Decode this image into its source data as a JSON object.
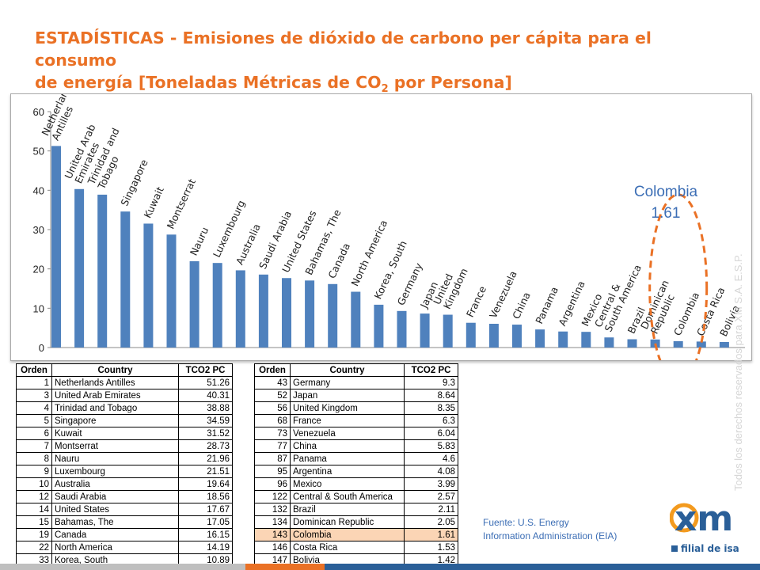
{
  "title": {
    "line1": "ESTADÍSTICAS - Emisiones de dióxido de carbono per cápita para el consumo",
    "line2_pre": "de energía [Toneladas Métricas  de CO",
    "line2_sub": "2",
    "line2_post": " por Persona]"
  },
  "callout": {
    "label": "Colombia",
    "value": "1.61"
  },
  "chart_data": {
    "type": "bar",
    "title": "",
    "xlabel": "",
    "ylabel": "",
    "ylim": [
      0,
      60
    ],
    "yticks": [
      0,
      10,
      20,
      30,
      40,
      50,
      60
    ],
    "grid": false,
    "legend": "none",
    "bar_color": "#4f81bd",
    "highlight_color": "#ea7125",
    "categories": [
      "Netherlands Antilles",
      "United Arab Emirates",
      "Trinidad and Tobago",
      "Singapore",
      "Kuwait",
      "Montserrat",
      "Nauru",
      "Luxembourg",
      "Australia",
      "Saudi Arabia",
      "United States",
      "Bahamas, The",
      "Canada",
      "North America",
      "Korea, South",
      "Germany",
      "Japan",
      "United Kingdom",
      "France",
      "Venezuela",
      "China",
      "Panama",
      "Argentina",
      "Mexico",
      "Central & South America",
      "Brazil",
      "Dominican Republic",
      "Colombia",
      "Costa Rica",
      "Bolivia"
    ],
    "label_lines": [
      [
        "Netherlands",
        "Antilles"
      ],
      [
        "United Arab",
        "Emirates"
      ],
      [
        "Trinidad and",
        "Tobago"
      ],
      [
        "Singapore"
      ],
      [
        "Kuwait"
      ],
      [
        "Montserrat"
      ],
      [
        "Nauru"
      ],
      [
        "Luxembourg"
      ],
      [
        "Australia"
      ],
      [
        "Saudi Arabia"
      ],
      [
        "United States"
      ],
      [
        "Bahamas, The"
      ],
      [
        "Canada"
      ],
      [
        "North America"
      ],
      [
        "Korea, South"
      ],
      [
        "Germany"
      ],
      [
        "Japan"
      ],
      [
        "United",
        "Kingdom"
      ],
      [
        "France"
      ],
      [
        "Venezuela"
      ],
      [
        "China"
      ],
      [
        "Panama"
      ],
      [
        "Argentina"
      ],
      [
        "Mexico"
      ],
      [
        "Central &",
        "South America"
      ],
      [
        "Brazil"
      ],
      [
        "Dominican",
        "Republic"
      ],
      [
        "Colombia"
      ],
      [
        "Costa Rica"
      ],
      [
        "Bolivia"
      ]
    ],
    "values": [
      51.26,
      40.31,
      38.88,
      34.59,
      31.52,
      28.73,
      21.96,
      21.51,
      19.64,
      18.56,
      17.67,
      17.05,
      16.15,
      14.19,
      10.89,
      9.3,
      8.64,
      8.35,
      6.3,
      6.04,
      5.83,
      4.6,
      4.08,
      3.99,
      2.57,
      2.11,
      2.05,
      1.61,
      1.53,
      1.42
    ],
    "highlight_category": "Colombia"
  },
  "table_headers": {
    "orden": "Orden",
    "country": "Country",
    "value": "TCO2 PC"
  },
  "table_left": [
    {
      "orden": "1",
      "country": "Netherlands Antilles",
      "value": "51.26"
    },
    {
      "orden": "3",
      "country": "United Arab Emirates",
      "value": "40.31"
    },
    {
      "orden": "4",
      "country": "Trinidad and Tobago",
      "value": "38.88"
    },
    {
      "orden": "5",
      "country": "Singapore",
      "value": "34.59"
    },
    {
      "orden": "6",
      "country": "Kuwait",
      "value": "31.52"
    },
    {
      "orden": "7",
      "country": "Montserrat",
      "value": "28.73"
    },
    {
      "orden": "8",
      "country": "Nauru",
      "value": "21.96"
    },
    {
      "orden": "9",
      "country": "Luxembourg",
      "value": "21.51"
    },
    {
      "orden": "10",
      "country": "Australia",
      "value": "19.64"
    },
    {
      "orden": "12",
      "country": "Saudi Arabia",
      "value": "18.56"
    },
    {
      "orden": "14",
      "country": "United States",
      "value": "17.67"
    },
    {
      "orden": "15",
      "country": "Bahamas, The",
      "value": "17.05"
    },
    {
      "orden": "19",
      "country": "Canada",
      "value": "16.15"
    },
    {
      "orden": "22",
      "country": "North America",
      "value": "14.19"
    },
    {
      "orden": "33",
      "country": "Korea, South",
      "value": "10.89"
    }
  ],
  "table_right": [
    {
      "orden": "43",
      "country": "Germany",
      "value": "9.3"
    },
    {
      "orden": "52",
      "country": "Japan",
      "value": "8.64"
    },
    {
      "orden": "56",
      "country": "United Kingdom",
      "value": "8.35"
    },
    {
      "orden": "68",
      "country": "France",
      "value": "6.3"
    },
    {
      "orden": "73",
      "country": "Venezuela",
      "value": "6.04"
    },
    {
      "orden": "77",
      "country": "China",
      "value": "5.83"
    },
    {
      "orden": "87",
      "country": "Panama",
      "value": "4.6"
    },
    {
      "orden": "95",
      "country": "Argentina",
      "value": "4.08"
    },
    {
      "orden": "96",
      "country": "Mexico",
      "value": "3.99"
    },
    {
      "orden": "122",
      "country": "Central & South America",
      "value": "2.57"
    },
    {
      "orden": "132",
      "country": "Brazil",
      "value": "2.11"
    },
    {
      "orden": "134",
      "country": "Dominican Republic",
      "value": "2.05"
    },
    {
      "orden": "143",
      "country": "Colombia",
      "value": "1.61",
      "highlight": true
    },
    {
      "orden": "146",
      "country": "Costa Rica",
      "value": "1.53"
    },
    {
      "orden": "147",
      "country": "Bolivia",
      "value": "1.42"
    }
  ],
  "source": {
    "line1": "Fuente: U.S. Energy",
    "line2": "Information Administration (EIA)"
  },
  "logo": {
    "text": "xm",
    "subtitle": "filial de isa"
  },
  "watermark": "Todos los derechos reservados para XM S.A. E.S.P.",
  "colors": {
    "title": "#ea7125",
    "accent_blue": "#3c6eb5",
    "logo_orange": "#f39a1e",
    "logo_blue": "#2a5f98",
    "row_highlight": "#fbd5b5"
  }
}
